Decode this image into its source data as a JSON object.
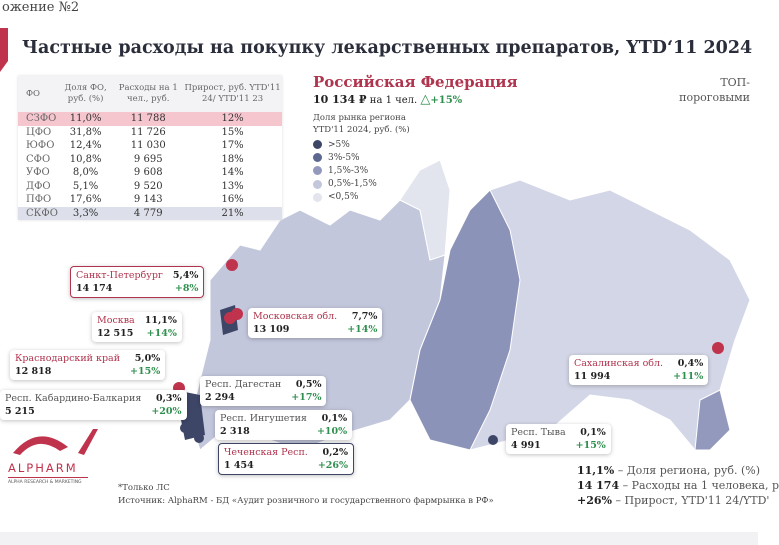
{
  "top_note": "ожение №2",
  "title": "Частные расходы на покупку лекарственных препаратов, YTD‘11 2024",
  "table": {
    "headers": [
      "ФО",
      "Доля ФО, руб. (%)",
      "Расходы на 1 чел., руб.",
      "Прирост, руб. YTD'11 24/ YTD'11 23"
    ],
    "rows": [
      [
        "СЗФО",
        "11,0%",
        "11 788",
        "12%"
      ],
      [
        "ЦФО",
        "31,8%",
        "11 726",
        "15%"
      ],
      [
        "ЮФО",
        "12,4%",
        "11 030",
        "17%"
      ],
      [
        "СФО",
        "10,8%",
        "9 695",
        "18%"
      ],
      [
        "УФО",
        "8,0%",
        "9 608",
        "14%"
      ],
      [
        "ДФО",
        "5,1%",
        "9 520",
        "13%"
      ],
      [
        "ПФО",
        "17,6%",
        "9 143",
        "16%"
      ],
      [
        "СКФО",
        "3,3%",
        "4 779",
        "21%"
      ]
    ]
  },
  "rf": {
    "name": "Российская Федерация",
    "value": "10 134 ₽",
    "per": "на 1 чел.",
    "growth": "+15%"
  },
  "legend": {
    "title_line1": "Доля рынка региона",
    "title_line2": "YTD'11 2024, руб. (%)",
    "items": [
      {
        "label": ">5%",
        "color": "#3e4668"
      },
      {
        "label": "3%-5%",
        "color": "#5d6891"
      },
      {
        "label": "1,5%-3%",
        "color": "#9299bd"
      },
      {
        "label": "0,5%-1,5%",
        "color": "#c3c7dc"
      },
      {
        "label": "<0,5%",
        "color": "#e2e4ee"
      }
    ]
  },
  "top_right": {
    "line1": "ТОП-",
    "line2": "пороговыми"
  },
  "cards": [
    {
      "name": "Санкт-Петербург",
      "share": "5,4%",
      "spend": "14 174",
      "growth": "+8%"
    },
    {
      "name": "Москва",
      "share": "11,1%",
      "spend": "12 515",
      "growth": "+14%"
    },
    {
      "name": "Московская обл.",
      "share": "7,7%",
      "spend": "13 109",
      "growth": "+14%"
    },
    {
      "name": "Краснодарский край",
      "share": "5,0%",
      "spend": "12 818",
      "growth": "+15%"
    },
    {
      "name": "Респ. Кабардино-Балкария",
      "share": "0,3%",
      "spend": "5 215",
      "growth": "+20%"
    },
    {
      "name": "Респ. Дагестан",
      "share": "0,5%",
      "spend": "2 294",
      "growth": "+17%"
    },
    {
      "name": "Респ. Ингушетия",
      "share": "0,1%",
      "spend": "2 318",
      "growth": "+10%"
    },
    {
      "name": "Чеченская Респ.",
      "share": "0,2%",
      "spend": "1 454",
      "growth": "+26%"
    },
    {
      "name": "Сахалинская обл.",
      "share": "0,4%",
      "spend": "11 994",
      "growth": "+11%"
    },
    {
      "name": "Респ. Тыва",
      "share": "0,1%",
      "spend": "4 991",
      "growth": "+15%"
    }
  ],
  "keys": [
    {
      "v": "11,1%",
      "t": " – Доля региона, руб. (%)"
    },
    {
      "v": "14 174",
      "t": " – Расходы на 1 человека, р"
    },
    {
      "v": "+26%",
      "t": " – Прирост, YTD'11 24/YTD'"
    }
  ],
  "footnote": "*Только ЛС",
  "source": "Источник: AlphaRM - БД «Аудит розничного и государственного фармрынка в РФ»",
  "logo": {
    "name": "ALPHARM",
    "sub": "ALPHA RESEARCH & MARKETING"
  }
}
